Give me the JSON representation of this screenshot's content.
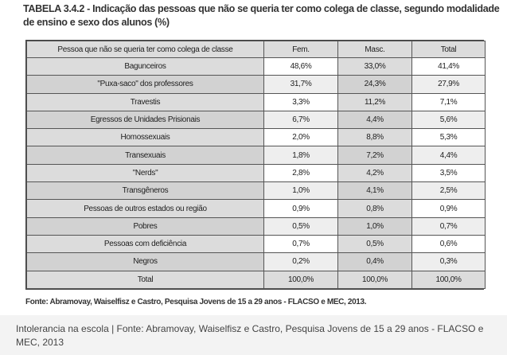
{
  "title": "TABELA 3.4.2 - Indicação das pessoas que não se queria ter como colega de classe, segundo modalidade de ensino e sexo dos alunos (%)",
  "table": {
    "headers": [
      "Pessoa que não se queria ter como colega de classe",
      "Fem.",
      "Masc.",
      "Total"
    ],
    "rows": [
      [
        "Bagunceiros",
        "48,6%",
        "33,0%",
        "41,4%"
      ],
      [
        "\"Puxa-saco\" dos professores",
        "31,7%",
        "24,3%",
        "27,9%"
      ],
      [
        "Travestis",
        "3,3%",
        "11,2%",
        "7,1%"
      ],
      [
        "Egressos de Unidades Prisionais",
        "6,7%",
        "4,4%",
        "5,6%"
      ],
      [
        "Homossexuais",
        "2,0%",
        "8,8%",
        "5,3%"
      ],
      [
        "Transexuais",
        "1,8%",
        "7,2%",
        "4,4%"
      ],
      [
        "\"Nerds\"",
        "2,8%",
        "4,2%",
        "3,5%"
      ],
      [
        "Transgêneros",
        "1,0%",
        "4,1%",
        "2,5%"
      ],
      [
        "Pessoas de outros estados ou região",
        "0,9%",
        "0,8%",
        "0,9%"
      ],
      [
        "Pobres",
        "0,5%",
        "1,0%",
        "0,7%"
      ],
      [
        "Pessoas com deficiência",
        "0,7%",
        "0,5%",
        "0,6%"
      ],
      [
        "Negros",
        "0,2%",
        "0,4%",
        "0,3%"
      ]
    ],
    "total": [
      "Total",
      "100,0%",
      "100,0%",
      "100,0%"
    ]
  },
  "source": "Fonte: Abramovay, Waiselfisz e Castro, Pesquisa Jovens de 15 a 29 anos - FLACSO e MEC, 2013.",
  "caption": "Intolerancia na escola | Fonte: Abramovay, Waiselfisz e Castro, Pesquisa Jovens de 15 a 29 anos - FLACSO e MEC, 2013"
}
